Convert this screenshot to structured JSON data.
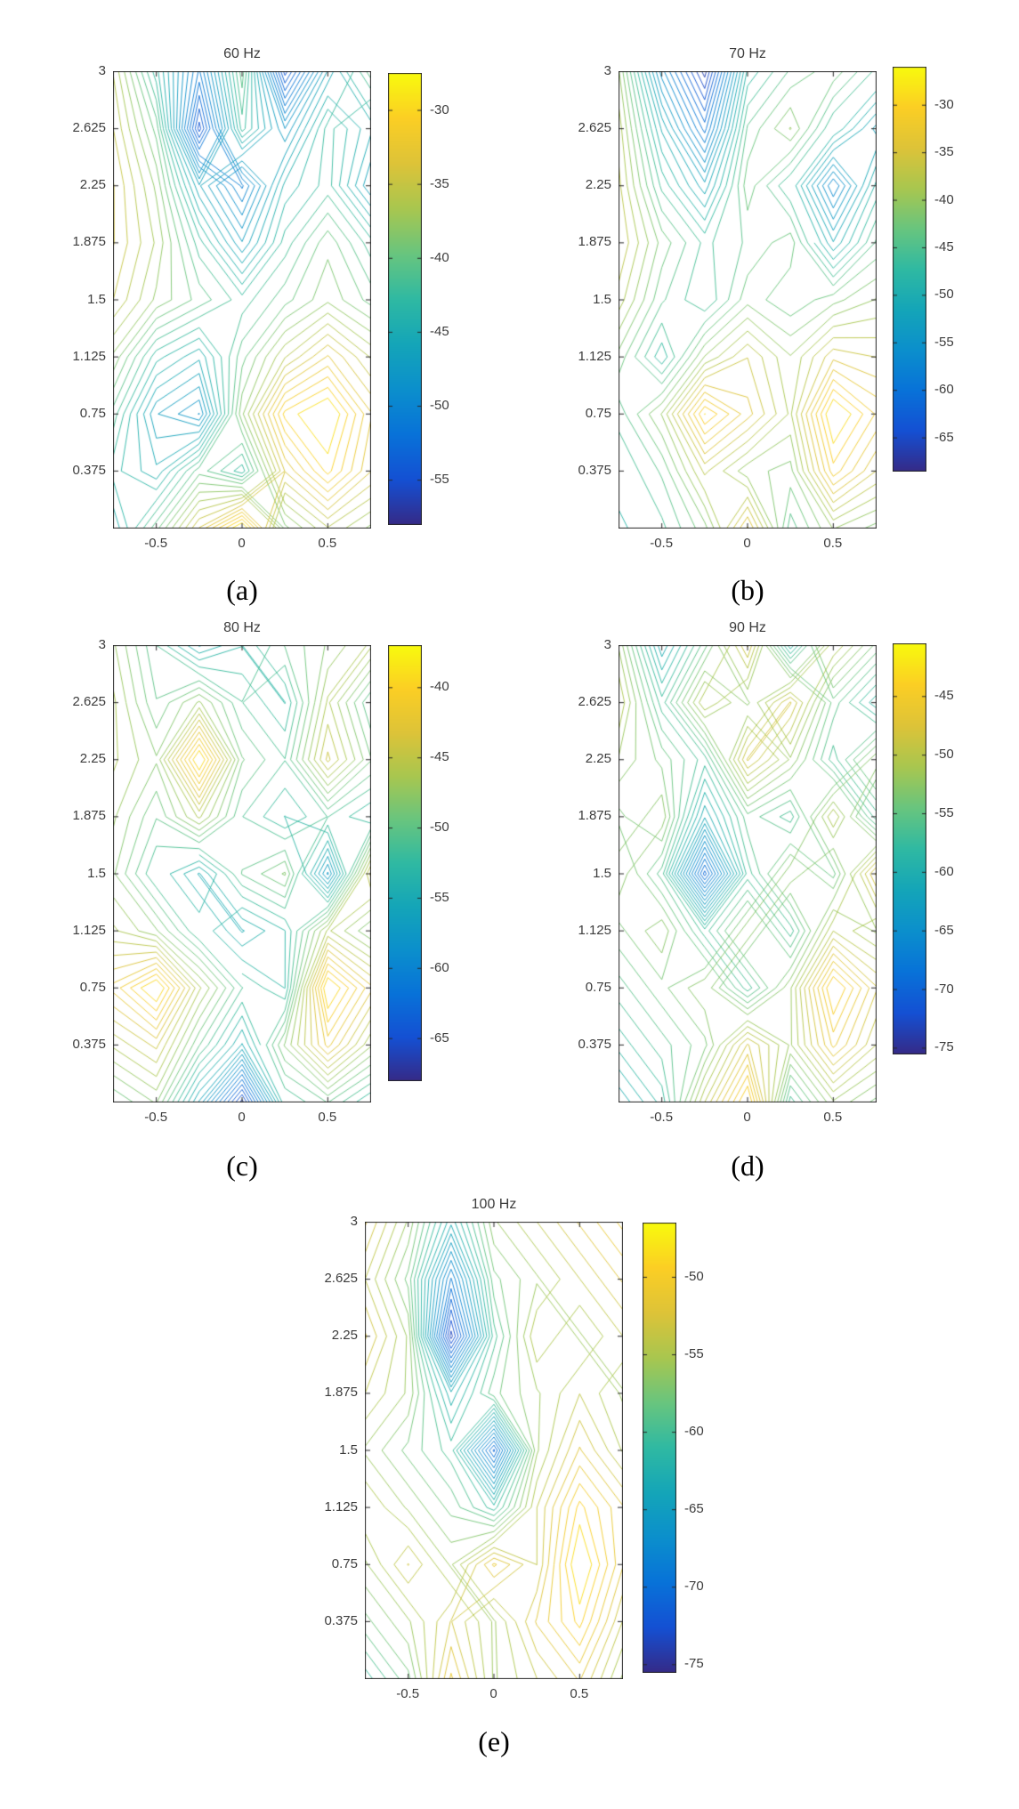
{
  "figure": {
    "kind": "matlab-contour-panel",
    "background": "#ffffff"
  },
  "colors": {
    "axis": "#262626",
    "tick_text": "#3c3c3c",
    "caption_text": "#000000",
    "parula": [
      [
        0.0,
        "#352a87"
      ],
      [
        0.1,
        "#1450d3"
      ],
      [
        0.2,
        "#0872d8"
      ],
      [
        0.3,
        "#0b8fcc"
      ],
      [
        0.4,
        "#14a5b8"
      ],
      [
        0.5,
        "#2fb9a2"
      ],
      [
        0.6,
        "#68c57e"
      ],
      [
        0.7,
        "#a8c64f"
      ],
      [
        0.8,
        "#ddc338"
      ],
      [
        0.9,
        "#fbce24"
      ],
      [
        1.0,
        "#f8fa0d"
      ]
    ]
  },
  "chart_data": [
    {
      "type": "contour",
      "title": "60 Hz",
      "caption": "(a)",
      "x": [
        -0.75,
        -0.5,
        -0.25,
        0,
        0.25,
        0.5,
        0.75
      ],
      "y": [
        3,
        2.625,
        2.25,
        1.875,
        1.5,
        1.125,
        0.75,
        0.375,
        0
      ],
      "xlim": [
        -0.75,
        0.75
      ],
      "ylim": [
        0,
        3
      ],
      "x_ticks": [
        "-0.5",
        "0",
        "0.5"
      ],
      "x_tick_vals": [
        -0.5,
        0,
        0.5
      ],
      "y_ticks": [
        "3",
        "2.625",
        "2.25",
        "1.875",
        "1.5",
        "1.125",
        "0.75",
        "0.375"
      ],
      "y_tick_vals": [
        3,
        2.625,
        2.25,
        1.875,
        1.5,
        1.125,
        0.75,
        0.375
      ],
      "z": [
        [
          -36,
          -43,
          -51,
          -40,
          -55,
          -46,
          -40
        ],
        [
          -35,
          -40,
          -55,
          -42,
          -48,
          -42,
          -45
        ],
        [
          -34,
          -38,
          -46,
          -51,
          -44,
          -42,
          -47
        ],
        [
          -34,
          -37,
          -42,
          -47,
          -42,
          -39,
          -42
        ],
        [
          -35,
          -38,
          -40,
          -42,
          -40,
          -38,
          -40
        ],
        [
          -38,
          -43,
          -45,
          -40,
          -36,
          -33,
          -36
        ],
        [
          -41,
          -47,
          -49,
          -38,
          -30,
          -28,
          -33
        ],
        [
          -43,
          -45,
          -40,
          -43,
          -34,
          -30,
          -34
        ],
        [
          -45,
          -40,
          -34,
          -28,
          -39,
          -36,
          -38
        ]
      ],
      "levels": 28,
      "colorbar": {
        "ticks": [
          -30,
          -35,
          -40,
          -45,
          -50,
          -55
        ],
        "clim": [
          -58,
          -27.5
        ]
      },
      "px": {
        "axes": [
          127,
          80,
          290,
          514
        ],
        "cbar": [
          436,
          82,
          38,
          508
        ],
        "caption": [
          272,
          663
        ]
      }
    },
    {
      "type": "contour",
      "title": "70 Hz",
      "caption": "(b)",
      "x": [
        -0.75,
        -0.5,
        -0.25,
        0,
        0.25,
        0.5,
        0.75
      ],
      "y": [
        3,
        2.625,
        2.25,
        1.875,
        1.5,
        1.125,
        0.75,
        0.375,
        0
      ],
      "xlim": [
        -0.75,
        0.75
      ],
      "ylim": [
        0,
        3
      ],
      "x_ticks": [
        "-0.5",
        "0",
        "0.5"
      ],
      "x_tick_vals": [
        -0.5,
        0,
        0.5
      ],
      "y_ticks": [
        "3",
        "2.625",
        "2.25",
        "1.875",
        "1.5",
        "1.125",
        "0.75",
        "0.375"
      ],
      "y_tick_vals": [
        3,
        2.625,
        2.25,
        1.875,
        1.5,
        1.125,
        0.75,
        0.375
      ],
      "z": [
        [
          -40,
          -56,
          -67,
          -48,
          -44,
          -42,
          -46
        ],
        [
          -38,
          -50,
          -60,
          -44,
          -40,
          -47,
          -53
        ],
        [
          -37,
          -46,
          -52,
          -42,
          -47,
          -58,
          -48
        ],
        [
          -36,
          -42,
          -46,
          -44,
          -42,
          -51,
          -44
        ],
        [
          -38,
          -44,
          -47,
          -42,
          -44,
          -42,
          -40
        ],
        [
          -42,
          -48,
          -40,
          -36,
          -40,
          -35,
          -36
        ],
        [
          -45,
          -40,
          -29,
          -34,
          -39,
          -27,
          -32
        ],
        [
          -47,
          -44,
          -37,
          -41,
          -42,
          -31,
          -36
        ],
        [
          -49,
          -46,
          -42,
          -33,
          -45,
          -40,
          -42
        ]
      ],
      "levels": 28,
      "colorbar": {
        "ticks": [
          -30,
          -35,
          -40,
          -45,
          -50,
          -55,
          -60,
          -65
        ],
        "clim": [
          -68.5,
          -26
        ]
      },
      "px": {
        "axes": [
          695,
          80,
          290,
          514
        ],
        "cbar": [
          1003,
          75,
          38,
          455
        ],
        "caption": [
          840,
          663
        ]
      }
    },
    {
      "type": "contour",
      "title": "80 Hz",
      "caption": "(c)",
      "x": [
        -0.75,
        -0.5,
        -0.25,
        0,
        0.25,
        0.5,
        0.75
      ],
      "y": [
        3,
        2.625,
        2.25,
        1.875,
        1.5,
        1.125,
        0.75,
        0.375,
        0
      ],
      "xlim": [
        -0.75,
        0.75
      ],
      "ylim": [
        0,
        3
      ],
      "x_ticks": [
        "-0.5",
        "0",
        "0.5"
      ],
      "x_tick_vals": [
        -0.5,
        0,
        0.5
      ],
      "y_ticks": [
        "3",
        "2.625",
        "2.25",
        "1.875",
        "1.5",
        "1.125",
        "0.75",
        "0.375"
      ],
      "y_tick_vals": [
        3,
        2.625,
        2.25,
        1.875,
        1.5,
        1.125,
        0.75,
        0.375
      ],
      "z": [
        [
          -47,
          -51,
          -55,
          -53,
          -50,
          -48,
          -46
        ],
        [
          -46,
          -50,
          -47,
          -51,
          -53,
          -46,
          -51
        ],
        [
          -46,
          -48,
          -38,
          -49,
          -51,
          -44,
          -49
        ],
        [
          -47,
          -50,
          -46,
          -51,
          -53,
          -51,
          -53
        ],
        [
          -48,
          -52,
          -55,
          -50,
          -48,
          -58,
          -44
        ],
        [
          -46,
          -48,
          -52,
          -55,
          -53,
          -46,
          -49
        ],
        [
          -42,
          -38,
          -46,
          -51,
          -53,
          -38,
          -43
        ],
        [
          -46,
          -44,
          -50,
          -55,
          -48,
          -42,
          -47
        ],
        [
          -50,
          -48,
          -56,
          -66,
          -52,
          -50,
          -53
        ]
      ],
      "levels": 28,
      "colorbar": {
        "ticks": [
          -40,
          -45,
          -50,
          -55,
          -60,
          -65
        ],
        "clim": [
          -68,
          -37
        ]
      },
      "px": {
        "axes": [
          127,
          725,
          290,
          514
        ],
        "cbar": [
          436,
          725,
          38,
          490
        ],
        "caption": [
          272,
          1310
        ]
      }
    },
    {
      "type": "contour",
      "title": "90 Hz",
      "caption": "(d)",
      "x": [
        -0.75,
        -0.5,
        -0.25,
        0,
        0.25,
        0.5,
        0.75
      ],
      "y": [
        3,
        2.625,
        2.25,
        1.875,
        1.5,
        1.125,
        0.75,
        0.375,
        0
      ],
      "xlim": [
        -0.75,
        0.75
      ],
      "ylim": [
        0,
        3
      ],
      "x_ticks": [
        "-0.5",
        "0",
        "0.5"
      ],
      "x_tick_vals": [
        -0.5,
        0,
        0.5
      ],
      "y_ticks": [
        "3",
        "2.625",
        "2.25",
        "1.875",
        "1.5",
        "1.125",
        "0.75",
        "0.375"
      ],
      "y_tick_vals": [
        3,
        2.625,
        2.25,
        1.875,
        1.5,
        1.125,
        0.75,
        0.375
      ],
      "z": [
        [
          -52,
          -61,
          -55,
          -48,
          -59,
          -50,
          -54
        ],
        [
          -50,
          -57,
          -50,
          -53,
          -48,
          -55,
          -59
        ],
        [
          -52,
          -54,
          -57,
          -48,
          -52,
          -57,
          -52
        ],
        [
          -54,
          -52,
          -61,
          -55,
          -57,
          -50,
          -57
        ],
        [
          -52,
          -56,
          -70,
          -57,
          -52,
          -55,
          -47
        ],
        [
          -54,
          -52,
          -57,
          -52,
          -57,
          -50,
          -52
        ],
        [
          -56,
          -54,
          -52,
          -57,
          -52,
          -43,
          -48
        ],
        [
          -58,
          -56,
          -54,
          -48,
          -52,
          -46,
          -50
        ],
        [
          -61,
          -58,
          -50,
          -43,
          -57,
          -52,
          -54
        ]
      ],
      "levels": 28,
      "colorbar": {
        "ticks": [
          -45,
          -50,
          -55,
          -60,
          -65,
          -70,
          -75
        ],
        "clim": [
          -75.5,
          -40.5
        ]
      },
      "px": {
        "axes": [
          695,
          725,
          290,
          514
        ],
        "cbar": [
          1003,
          723,
          38,
          462
        ],
        "caption": [
          840,
          1310
        ]
      }
    },
    {
      "type": "contour",
      "title": "100 Hz",
      "caption": "(e)",
      "x": [
        -0.75,
        -0.5,
        -0.25,
        0,
        0.25,
        0.5,
        0.75
      ],
      "y": [
        3,
        2.625,
        2.25,
        1.875,
        1.5,
        1.125,
        0.75,
        0.375,
        0
      ],
      "xlim": [
        -0.75,
        0.75
      ],
      "ylim": [
        0,
        3
      ],
      "x_ticks": [
        "-0.5",
        "0",
        "0.5"
      ],
      "x_tick_vals": [
        -0.5,
        0,
        0.5
      ],
      "y_ticks": [
        "3",
        "2.625",
        "2.25",
        "1.875",
        "1.5",
        "1.125",
        "0.75",
        "0.375"
      ],
      "y_tick_vals": [
        3,
        2.625,
        2.25,
        1.875,
        1.5,
        1.125,
        0.75,
        0.375
      ],
      "z": [
        [
          -52,
          -56,
          -63,
          -56,
          -54,
          -52,
          -50
        ],
        [
          -54,
          -58,
          -69,
          -58,
          -56,
          -54,
          -52
        ],
        [
          -52,
          -56,
          -74,
          -60,
          -54,
          -56,
          -54
        ],
        [
          -54,
          -56,
          -63,
          -58,
          -56,
          -54,
          -56
        ],
        [
          -56,
          -58,
          -60,
          -71,
          -56,
          -52,
          -55
        ],
        [
          -54,
          -56,
          -58,
          -61,
          -54,
          -49,
          -52
        ],
        [
          -56,
          -53,
          -56,
          -51,
          -54,
          -47,
          -52
        ],
        [
          -58,
          -56,
          -53,
          -56,
          -52,
          -49,
          -54
        ],
        [
          -61,
          -58,
          -51,
          -56,
          -54,
          -52,
          -56
        ]
      ],
      "levels": 28,
      "colorbar": {
        "ticks": [
          -50,
          -55,
          -60,
          -65,
          -70,
          -75
        ],
        "clim": [
          -75.5,
          -46.5
        ]
      },
      "px": {
        "axes": [
          410,
          1373,
          290,
          514
        ],
        "cbar": [
          722,
          1374,
          38,
          506
        ],
        "caption": [
          555,
          1957
        ]
      }
    }
  ]
}
